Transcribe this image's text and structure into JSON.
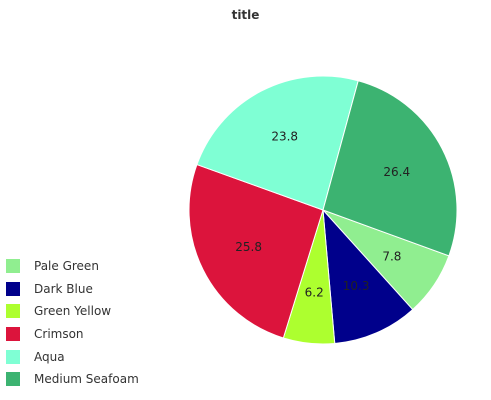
{
  "chart_data": {
    "type": "pie",
    "title": "title",
    "categories": [
      "Pale Green",
      "Dark Blue",
      "Green Yellow",
      "Crimson",
      "Aqua",
      "Medium Seafoam"
    ],
    "values": [
      7.8,
      10.3,
      6.2,
      25.8,
      23.8,
      26.4
    ],
    "colors": [
      "#90ee90",
      "#00008b",
      "#adff2f",
      "#dc143c",
      "#7fffd4",
      "#3cb371"
    ],
    "legend_position": "bottom-left",
    "start_angle_deg": -20,
    "direction": "counterclockwise"
  }
}
